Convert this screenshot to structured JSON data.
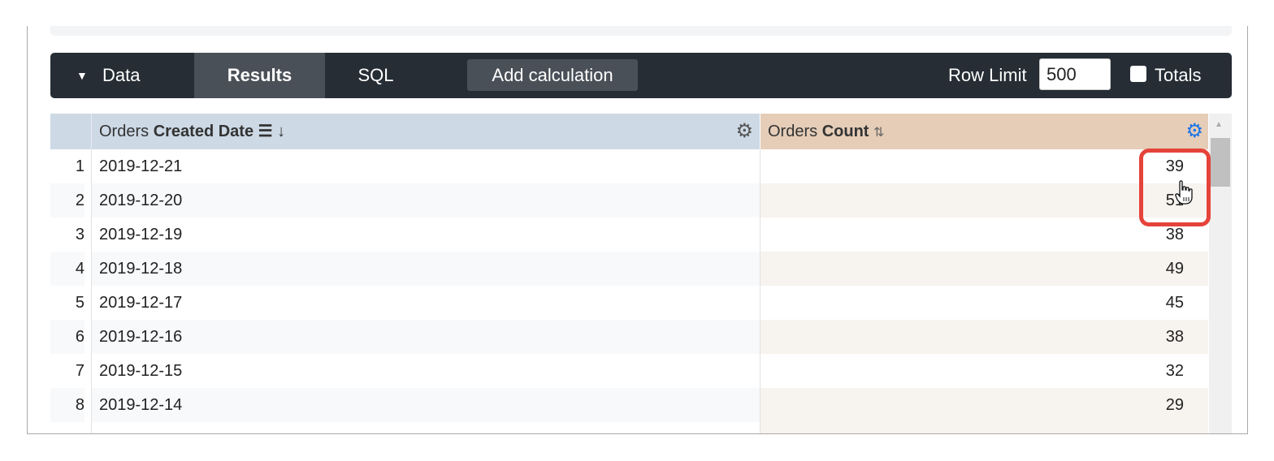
{
  "toolbar": {
    "tabs": [
      {
        "label": "Data"
      },
      {
        "label": "Results"
      },
      {
        "label": "SQL"
      }
    ],
    "add_calculation": "Add calculation",
    "row_limit_label": "Row Limit",
    "row_limit_value": "500",
    "totals_label": "Totals",
    "totals_checked": false
  },
  "table": {
    "columns": [
      {
        "view": "Orders",
        "field": "Created Date"
      },
      {
        "view": "Orders",
        "field": "Count"
      }
    ],
    "rows": [
      {
        "n": "1",
        "date": "2019-12-21",
        "count": "39"
      },
      {
        "n": "2",
        "date": "2019-12-20",
        "count": "51"
      },
      {
        "n": "3",
        "date": "2019-12-19",
        "count": "38"
      },
      {
        "n": "4",
        "date": "2019-12-18",
        "count": "49"
      },
      {
        "n": "5",
        "date": "2019-12-17",
        "count": "45"
      },
      {
        "n": "6",
        "date": "2019-12-16",
        "count": "38"
      },
      {
        "n": "7",
        "date": "2019-12-15",
        "count": "32"
      },
      {
        "n": "8",
        "date": "2019-12-14",
        "count": "29"
      }
    ]
  },
  "colors": {
    "dimension_header": "#cdd9e5",
    "measure_header": "#e5cdb8",
    "highlight": "#e5433a",
    "toolbar": "#262d34"
  }
}
